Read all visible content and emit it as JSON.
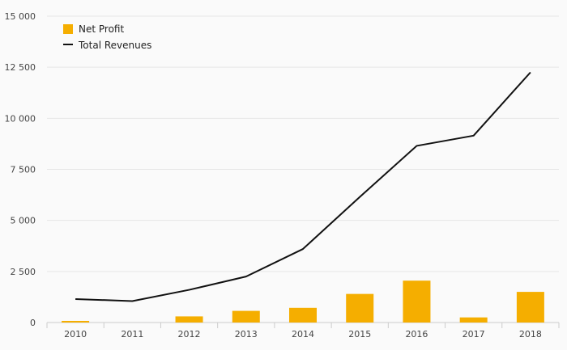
{
  "chart_data": {
    "type": "bar",
    "categories": [
      "2010",
      "2011",
      "2012",
      "2013",
      "2014",
      "2015",
      "2016",
      "2017",
      "2018"
    ],
    "series": [
      {
        "name": "Net Profit",
        "type": "bar",
        "values": [
          80,
          0,
          300,
          570,
          720,
          1400,
          2050,
          250,
          1500
        ]
      },
      {
        "name": "Total Revenues",
        "type": "line",
        "values": [
          1150,
          1050,
          1600,
          2250,
          3600,
          6150,
          8650,
          9150,
          12250
        ]
      }
    ],
    "ylim": [
      0,
      15000
    ],
    "yticks": [
      0,
      2500,
      5000,
      7500,
      10000,
      12500,
      15000
    ],
    "ytick_labels": [
      "0",
      "2 500",
      "5 000",
      "7 500",
      "10 000",
      "12 500",
      "15 000"
    ],
    "grid": true,
    "legend_position": "top-left"
  },
  "colors": {
    "bar": "#f5ae00",
    "line": "#111111",
    "grid": "#e6e6e6",
    "axis": "#cccccc"
  }
}
